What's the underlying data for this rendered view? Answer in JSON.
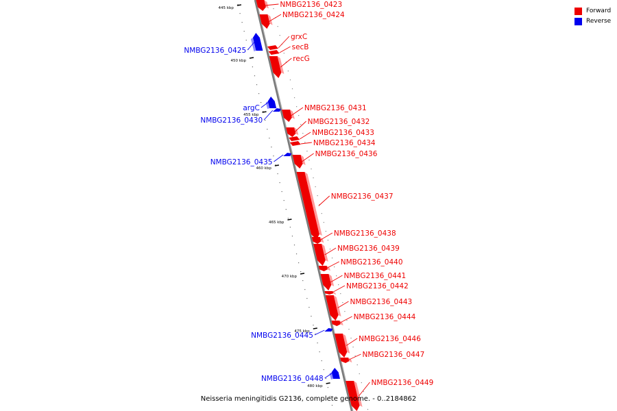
{
  "legend": {
    "forward_label": "Forward",
    "reverse_label": "Reverse",
    "forward_color": "#ee0000",
    "reverse_color": "#0000ee"
  },
  "caption": "Neisseria meningitidis G2136, complete genome. - 0..2184862",
  "scale_unit": "kbp",
  "ticks": [
    "445 kbp",
    "450 kbp",
    "455 kbp",
    "460 kbp",
    "465 kbp",
    "470 kbp",
    "475 kbp",
    "480 kbp"
  ],
  "genes": [
    {
      "name": "NMBG2136_0423",
      "strand": "forward"
    },
    {
      "name": "NMBG2136_0424",
      "strand": "forward"
    },
    {
      "name": "grxC",
      "strand": "forward"
    },
    {
      "name": "secB",
      "strand": "forward"
    },
    {
      "name": "recG",
      "strand": "forward"
    },
    {
      "name": "NMBG2136_0425",
      "strand": "reverse"
    },
    {
      "name": "argC",
      "strand": "reverse"
    },
    {
      "name": "NMBG2136_0430",
      "strand": "reverse"
    },
    {
      "name": "NMBG2136_0431",
      "strand": "forward"
    },
    {
      "name": "NMBG2136_0432",
      "strand": "forward"
    },
    {
      "name": "NMBG2136_0433",
      "strand": "forward"
    },
    {
      "name": "NMBG2136_0434",
      "strand": "forward"
    },
    {
      "name": "NMBG2136_0436",
      "strand": "forward"
    },
    {
      "name": "NMBG2136_0435",
      "strand": "reverse"
    },
    {
      "name": "NMBG2136_0437",
      "strand": "forward"
    },
    {
      "name": "NMBG2136_0438",
      "strand": "forward"
    },
    {
      "name": "NMBG2136_0439",
      "strand": "forward"
    },
    {
      "name": "NMBG2136_0440",
      "strand": "forward"
    },
    {
      "name": "NMBG2136_0441",
      "strand": "forward"
    },
    {
      "name": "NMBG2136_0442",
      "strand": "forward"
    },
    {
      "name": "NMBG2136_0443",
      "strand": "forward"
    },
    {
      "name": "NMBG2136_0444",
      "strand": "forward"
    },
    {
      "name": "NMBG2136_0445",
      "strand": "reverse"
    },
    {
      "name": "NMBG2136_0446",
      "strand": "forward"
    },
    {
      "name": "NMBG2136_0447",
      "strand": "forward"
    },
    {
      "name": "NMBG2136_0448",
      "strand": "reverse"
    },
    {
      "name": "NMBG2136_0449",
      "strand": "forward"
    }
  ]
}
